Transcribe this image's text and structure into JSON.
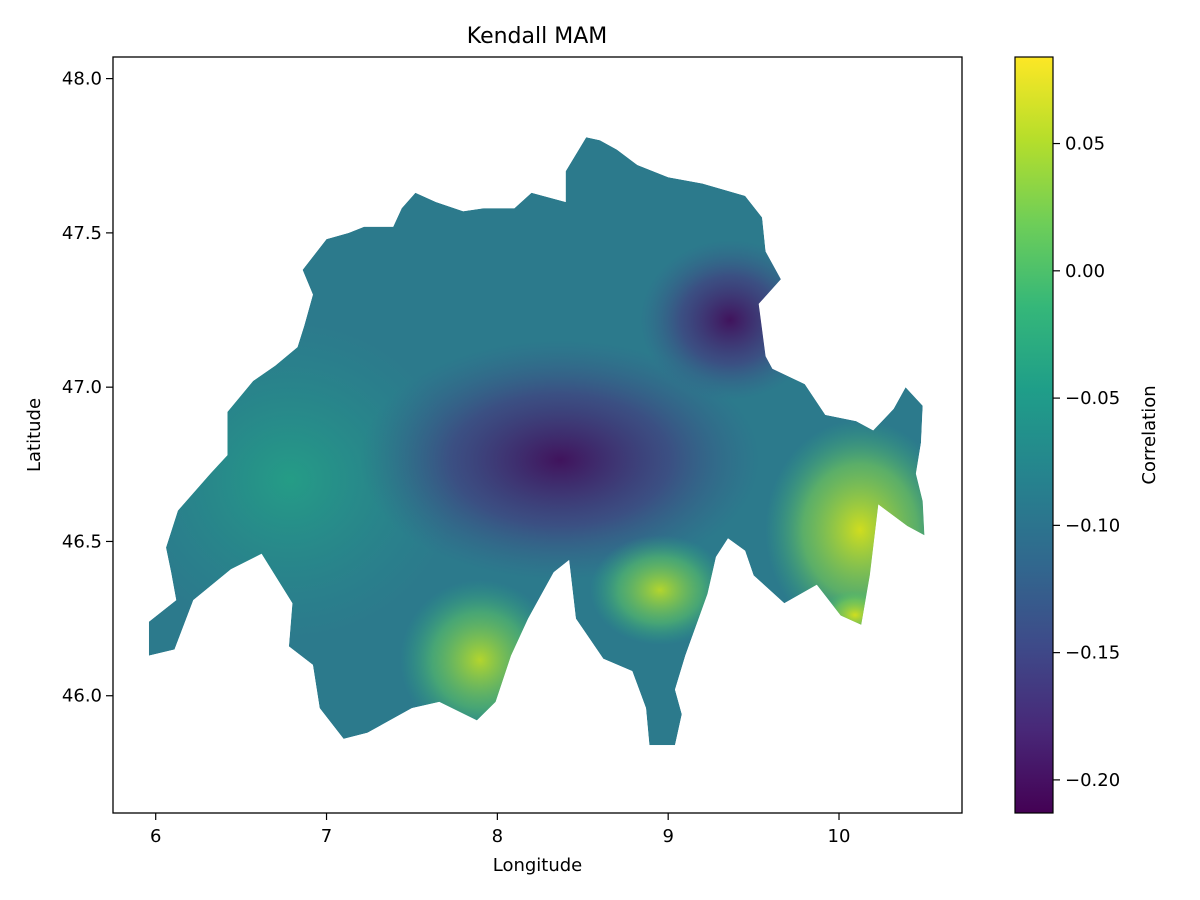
{
  "chart_data": {
    "type": "heatmap",
    "title": "Kendall MAM",
    "xlabel": "Longitude",
    "ylabel": "Latitude",
    "xlim": [
      5.75,
      10.72
    ],
    "ylim": [
      45.62,
      48.07
    ],
    "xticks": [
      6,
      7,
      8,
      9,
      10
    ],
    "xtick_labels": [
      "6",
      "7",
      "8",
      "9",
      "10"
    ],
    "yticks": [
      46.0,
      46.5,
      47.0,
      47.5,
      48.0
    ],
    "ytick_labels": [
      "46.0",
      "46.5",
      "47.0",
      "47.5",
      "48.0"
    ],
    "grid": false,
    "colorbar": {
      "label": "Correlation",
      "colormap": "viridis",
      "range": [
        -0.213,
        0.084
      ],
      "ticks": [
        -0.2,
        -0.15,
        -0.1,
        -0.05,
        0.0,
        0.05
      ],
      "tick_labels": [
        "−0.20",
        "−0.15",
        "−0.10",
        "−0.05",
        "0.00",
        "0.05"
      ]
    },
    "region_outline_lonlat": [
      [
        5.96,
        46.13
      ],
      [
        5.96,
        46.24
      ],
      [
        6.12,
        46.31
      ],
      [
        6.09,
        46.4
      ],
      [
        6.06,
        46.48
      ],
      [
        6.13,
        46.6
      ],
      [
        6.32,
        46.72
      ],
      [
        6.42,
        46.78
      ],
      [
        6.42,
        46.92
      ],
      [
        6.57,
        47.02
      ],
      [
        6.7,
        47.07
      ],
      [
        6.83,
        47.13
      ],
      [
        6.87,
        47.2
      ],
      [
        6.92,
        47.3
      ],
      [
        6.86,
        47.38
      ],
      [
        7.0,
        47.48
      ],
      [
        7.13,
        47.5
      ],
      [
        7.22,
        47.52
      ],
      [
        7.39,
        47.52
      ],
      [
        7.44,
        47.58
      ],
      [
        7.52,
        47.63
      ],
      [
        7.64,
        47.6
      ],
      [
        7.8,
        47.57
      ],
      [
        7.92,
        47.58
      ],
      [
        8.1,
        47.58
      ],
      [
        8.2,
        47.63
      ],
      [
        8.4,
        47.6
      ],
      [
        8.4,
        47.7
      ],
      [
        8.52,
        47.81
      ],
      [
        8.6,
        47.8
      ],
      [
        8.7,
        47.77
      ],
      [
        8.82,
        47.72
      ],
      [
        9.0,
        47.68
      ],
      [
        9.2,
        47.66
      ],
      [
        9.45,
        47.62
      ],
      [
        9.55,
        47.55
      ],
      [
        9.57,
        47.44
      ],
      [
        9.66,
        47.35
      ],
      [
        9.53,
        47.27
      ],
      [
        9.57,
        47.1
      ],
      [
        9.61,
        47.06
      ],
      [
        9.8,
        47.01
      ],
      [
        9.92,
        46.91
      ],
      [
        10.1,
        46.89
      ],
      [
        10.2,
        46.86
      ],
      [
        10.32,
        46.93
      ],
      [
        10.39,
        47.0
      ],
      [
        10.49,
        46.94
      ],
      [
        10.48,
        46.82
      ],
      [
        10.45,
        46.72
      ],
      [
        10.49,
        46.63
      ],
      [
        10.5,
        46.52
      ],
      [
        10.4,
        46.55
      ],
      [
        10.23,
        46.62
      ],
      [
        10.18,
        46.39
      ],
      [
        10.13,
        46.23
      ],
      [
        10.01,
        46.26
      ],
      [
        9.87,
        46.36
      ],
      [
        9.68,
        46.3
      ],
      [
        9.5,
        46.39
      ],
      [
        9.45,
        46.47
      ],
      [
        9.35,
        46.51
      ],
      [
        9.28,
        46.45
      ],
      [
        9.23,
        46.33
      ],
      [
        9.1,
        46.13
      ],
      [
        9.04,
        46.02
      ],
      [
        9.08,
        45.94
      ],
      [
        9.04,
        45.84
      ],
      [
        8.89,
        45.84
      ],
      [
        8.87,
        45.96
      ],
      [
        8.79,
        46.08
      ],
      [
        8.62,
        46.12
      ],
      [
        8.46,
        46.25
      ],
      [
        8.42,
        46.44
      ],
      [
        8.33,
        46.4
      ],
      [
        8.18,
        46.25
      ],
      [
        8.08,
        46.13
      ],
      [
        7.99,
        45.98
      ],
      [
        7.88,
        45.92
      ],
      [
        7.66,
        45.98
      ],
      [
        7.5,
        45.96
      ],
      [
        7.24,
        45.88
      ],
      [
        7.1,
        45.86
      ],
      [
        6.96,
        45.96
      ],
      [
        6.92,
        46.1
      ],
      [
        6.78,
        46.16
      ],
      [
        6.8,
        46.3
      ],
      [
        6.62,
        46.46
      ],
      [
        6.44,
        46.41
      ],
      [
        6.22,
        46.31
      ],
      [
        6.11,
        46.15
      ],
      [
        5.96,
        46.13
      ]
    ]
  }
}
